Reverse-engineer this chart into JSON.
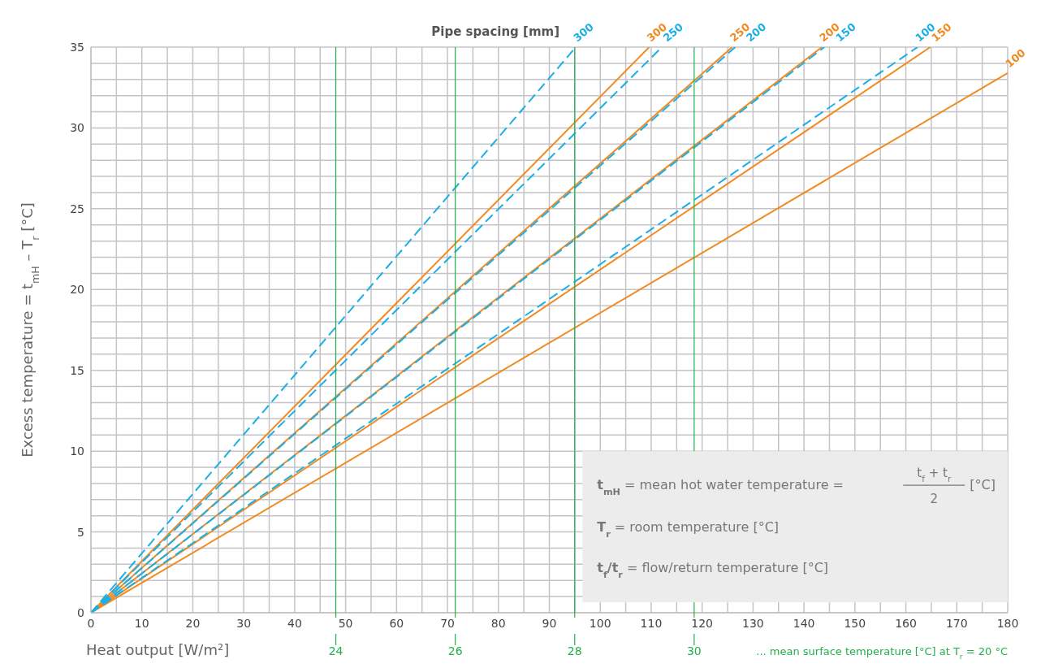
{
  "chart_data": {
    "type": "line",
    "xlabel": "Heat output [W/m²]",
    "ylabel": "Excess temperature = t$_{mH}$ – T$_{r}$ [°C]",
    "legend_title": "Pipe spacing [mm]",
    "xlim": [
      0,
      180
    ],
    "ylim": [
      0,
      35
    ],
    "xticks": [
      0,
      {
        "value": 5,
        "label": null
      },
      10,
      {
        "value": 15,
        "label": null
      },
      20,
      {
        "value": 25,
        "label": null
      },
      30,
      {
        "value": 35,
        "label": null
      },
      40,
      {
        "value": 45,
        "label": null
      },
      50,
      {
        "value": 55,
        "label": null
      },
      60,
      {
        "value": 65,
        "label": null
      },
      70,
      {
        "value": 75,
        "label": null
      },
      80,
      {
        "value": 85,
        "label": null
      },
      90,
      {
        "value": 95,
        "label": null
      },
      100,
      {
        "value": 105,
        "label": null
      },
      110,
      {
        "value": 115,
        "label": null
      },
      120,
      {
        "value": 125,
        "label": null
      },
      130,
      {
        "value": 135,
        "label": null
      },
      140,
      {
        "value": 145,
        "label": null
      },
      150,
      {
        "value": 155,
        "label": null
      },
      160,
      {
        "value": 165,
        "label": null
      },
      170,
      {
        "value": 175,
        "label": null
      },
      180
    ],
    "yticks": [
      0,
      {
        "value": 1,
        "label": null
      },
      {
        "value": 2,
        "label": null
      },
      {
        "value": 3,
        "label": null
      },
      {
        "value": 4,
        "label": null
      },
      5,
      {
        "value": 6,
        "label": null
      },
      {
        "value": 7,
        "label": null
      },
      {
        "value": 8,
        "label": null
      },
      {
        "value": 9,
        "label": null
      },
      10,
      {
        "value": 11,
        "label": null
      },
      {
        "value": 12,
        "label": null
      },
      {
        "value": 13,
        "label": null
      },
      {
        "value": 14,
        "label": null
      },
      15,
      {
        "value": 16,
        "label": null
      },
      {
        "value": 17,
        "label": null
      },
      {
        "value": 18,
        "label": null
      },
      {
        "value": 19,
        "label": null
      },
      20,
      {
        "value": 21,
        "label": null
      },
      {
        "value": 22,
        "label": null
      },
      {
        "value": 23,
        "label": null
      },
      {
        "value": 24,
        "label": null
      },
      25,
      {
        "value": 26,
        "label": null
      },
      {
        "value": 27,
        "label": null
      },
      {
        "value": 28,
        "label": null
      },
      {
        "value": 29,
        "label": null
      },
      30,
      {
        "value": 31,
        "label": null
      },
      {
        "value": 32,
        "label": null
      },
      {
        "value": 33,
        "label": null
      },
      {
        "value": 34,
        "label": null
      },
      35
    ],
    "grid": true,
    "marker": "none",
    "series": [
      {
        "name": "300",
        "color": "#f28a21",
        "line_style": "solid",
        "x": [
          0,
          109.6
        ],
        "values": [
          0,
          35
        ]
      },
      {
        "name": "250",
        "color": "#f28a21",
        "line_style": "solid",
        "x": [
          0,
          125.9
        ],
        "values": [
          0,
          35
        ]
      },
      {
        "name": "200",
        "color": "#f28a21",
        "line_style": "solid",
        "x": [
          0,
          143.5
        ],
        "values": [
          0,
          35
        ]
      },
      {
        "name": "150",
        "color": "#f28a21",
        "line_style": "solid",
        "x": [
          0,
          164.8
        ],
        "values": [
          0,
          35
        ]
      },
      {
        "name": "100",
        "color": "#f28a21",
        "line_style": "solid",
        "x": [
          0,
          180
        ],
        "values": [
          0,
          33.4
        ]
      },
      {
        "name": "300",
        "color": "#1aafe6",
        "line_style": "dashed",
        "x": [
          0,
          95.2
        ],
        "values": [
          0,
          35
        ]
      },
      {
        "name": "250",
        "color": "#1aafe6",
        "line_style": "dashed",
        "x": [
          0,
          112.1
        ],
        "values": [
          0,
          35
        ]
      },
      {
        "name": "200",
        "color": "#1aafe6",
        "line_style": "dashed",
        "x": [
          0,
          126.5
        ],
        "values": [
          0,
          35
        ]
      },
      {
        "name": "150",
        "color": "#1aafe6",
        "line_style": "dashed",
        "x": [
          0,
          144
        ],
        "values": [
          0,
          35
        ]
      },
      {
        "name": "100",
        "color": "#1aafe6",
        "line_style": "dashed",
        "x": [
          0,
          162.3
        ],
        "values": [
          0,
          35
        ]
      }
    ],
    "x2lim": [
      19.9,
      35.25
    ],
    "x2ticks": [
      24,
      26,
      28,
      30
    ],
    "x2label": "... mean surface temperature [°C] at T$_{r}$ = 20 °C",
    "annotations": [
      "t$_{mH}$ = mean hot water temperature =",
      "t$_{f}$ + t$_{r}$",
      "2",
      "[°C]",
      "T$_{r}$ = room temperature [°C]",
      "t$_{f}$/t$_{r}$ = flow/return temperature [°C]"
    ]
  }
}
